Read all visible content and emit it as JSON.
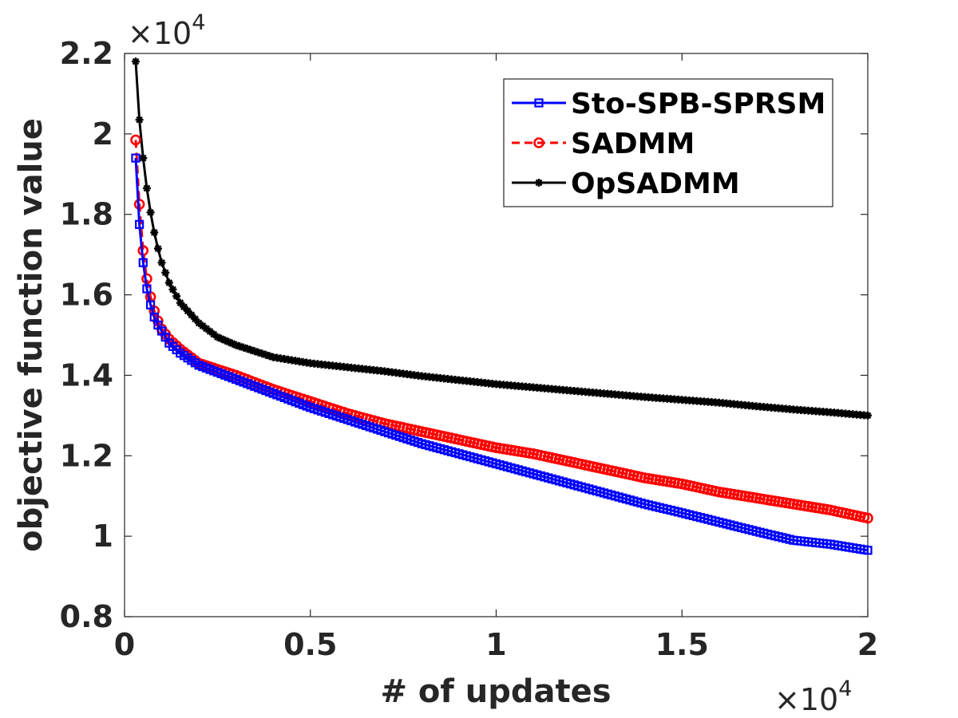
{
  "chart_data": {
    "type": "line",
    "title": "",
    "xlabel": "# of updates",
    "ylabel": "objective function value",
    "x_exponent_label": "×10",
    "x_exponent_power": "4",
    "y_exponent_label": "×10",
    "y_exponent_power": "4",
    "xlim": [
      0,
      20000
    ],
    "ylim": [
      8000,
      22000
    ],
    "x_ticks": [
      0,
      5000,
      10000,
      15000,
      20000
    ],
    "x_tick_labels": [
      "0",
      "0.5",
      "1",
      "1.5",
      "2"
    ],
    "y_ticks": [
      8000,
      10000,
      12000,
      14000,
      16000,
      18000,
      20000,
      22000
    ],
    "y_tick_labels": [
      "0.8",
      "1",
      "1.2",
      "1.4",
      "1.6",
      "1.8",
      "2",
      "2.2"
    ],
    "legend_position": "top-right",
    "series": [
      {
        "name": "Sto-SPB-SPRSM",
        "color": "#0000ff",
        "line_style": "solid",
        "marker": "square",
        "x": [
          300,
          400,
          500,
          600,
          700,
          800,
          900,
          1000,
          1200,
          1500,
          2000,
          3000,
          4000,
          5000,
          6000,
          7000,
          8000,
          9000,
          10000,
          11000,
          12000,
          13000,
          14000,
          15000,
          16000,
          17000,
          18000,
          19000,
          20000
        ],
        "y": [
          19400,
          17750,
          16800,
          16150,
          15750,
          15450,
          15250,
          15100,
          14800,
          14550,
          14250,
          13900,
          13550,
          13200,
          12900,
          12600,
          12300,
          12050,
          11800,
          11550,
          11300,
          11050,
          10800,
          10580,
          10350,
          10120,
          9900,
          9800,
          9650
        ]
      },
      {
        "name": "SADMM",
        "color": "#ff0000",
        "line_style": "dashed",
        "marker": "circle",
        "x": [
          300,
          400,
          500,
          600,
          700,
          800,
          900,
          1000,
          1200,
          1500,
          2000,
          3000,
          4000,
          5000,
          6000,
          7000,
          8000,
          9000,
          10000,
          11000,
          12000,
          13000,
          14000,
          15000,
          16000,
          17000,
          18000,
          19000,
          20000
        ],
        "y": [
          19850,
          18250,
          17100,
          16400,
          15950,
          15600,
          15350,
          15150,
          14900,
          14650,
          14300,
          14000,
          13650,
          13350,
          13050,
          12800,
          12600,
          12400,
          12200,
          12050,
          11850,
          11650,
          11450,
          11300,
          11100,
          10950,
          10800,
          10650,
          10450
        ]
      },
      {
        "name": "OpSADMM",
        "color": "#000000",
        "line_style": "solid",
        "marker": "asterisk",
        "x": [
          300,
          400,
          500,
          600,
          700,
          800,
          900,
          1000,
          1200,
          1500,
          2000,
          2500,
          3000,
          4000,
          5000,
          6000,
          7000,
          8000,
          9000,
          10000,
          11000,
          12000,
          13000,
          14000,
          15000,
          16000,
          17000,
          18000,
          19000,
          20000
        ],
        "y": [
          21800,
          20350,
          19400,
          18650,
          18050,
          17550,
          17150,
          16800,
          16300,
          15800,
          15300,
          14950,
          14750,
          14450,
          14300,
          14200,
          14100,
          13980,
          13880,
          13780,
          13700,
          13620,
          13540,
          13460,
          13390,
          13320,
          13230,
          13150,
          13080,
          13000
        ]
      }
    ]
  }
}
